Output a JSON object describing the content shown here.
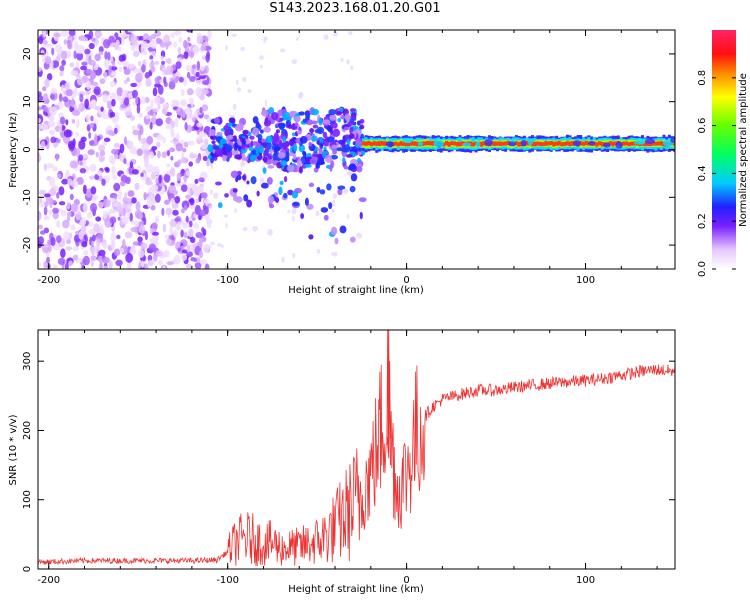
{
  "title": "S143.2023.168.01.20.G01",
  "chart_data": [
    {
      "type": "heatmap",
      "xlabel": "Height of straight line (km)",
      "ylabel": "Frequency (Hz)",
      "xlim": [
        -206,
        150
      ],
      "ylim": [
        -25,
        25
      ],
      "xticks": [
        -200,
        -100,
        0,
        100
      ],
      "yticks": [
        20,
        10,
        0,
        -10,
        -20
      ],
      "colorbar": {
        "label": "Normalized spectral amplitude",
        "range": [
          0,
          1
        ],
        "ticks": [
          0.0,
          0.2,
          0.4,
          0.6,
          0.8
        ]
      },
      "regions": [
        {
          "x_range": [
            -206,
            -110
          ],
          "description": "scattered low-amplitude noise across all frequencies",
          "amplitude": [
            0.0,
            0.2
          ]
        },
        {
          "x_range": [
            -110,
            -25
          ],
          "y_range": [
            -20,
            9
          ],
          "description": "moderate amplitude cluster near 0-5 Hz",
          "amplitude": [
            0.1,
            0.4
          ]
        },
        {
          "x_range": [
            -25,
            150
          ],
          "y_range": [
            0,
            2
          ],
          "description": "narrow carrier line near 1 Hz",
          "amplitude": [
            0.7,
            1.0
          ]
        }
      ],
      "grid": false
    },
    {
      "type": "line",
      "xlabel": "Height of straight line (km)",
      "ylabel": "SNR (10 * v/v)",
      "xlim": [
        -206,
        150
      ],
      "ylim": [
        0,
        345
      ],
      "xticks": [
        -200,
        -100,
        0,
        100
      ],
      "yticks": [
        0,
        100,
        200,
        300
      ],
      "color": "#ee3333",
      "series": [
        {
          "x": [
            -206,
            -180,
            -150,
            -120,
            -106,
            -100,
            -95,
            -90,
            -85,
            -80,
            -75,
            -70,
            -60,
            -50,
            -45,
            -40,
            -35,
            -30,
            -25,
            -20,
            -16,
            -12,
            -10,
            -8,
            -5,
            0,
            5,
            10,
            15,
            20,
            30,
            40,
            50,
            60,
            70,
            80,
            90,
            100,
            110,
            120,
            125,
            130,
            140,
            150
          ],
          "y": [
            10,
            12,
            12,
            12,
            13,
            25,
            40,
            45,
            42,
            35,
            38,
            30,
            32,
            40,
            48,
            60,
            75,
            90,
            110,
            140,
            180,
            230,
            250,
            170,
            110,
            140,
            190,
            220,
            235,
            245,
            252,
            258,
            258,
            262,
            265,
            268,
            270,
            272,
            275,
            280,
            282,
            285,
            288,
            285
          ]
        }
      ],
      "grid": false
    }
  ]
}
